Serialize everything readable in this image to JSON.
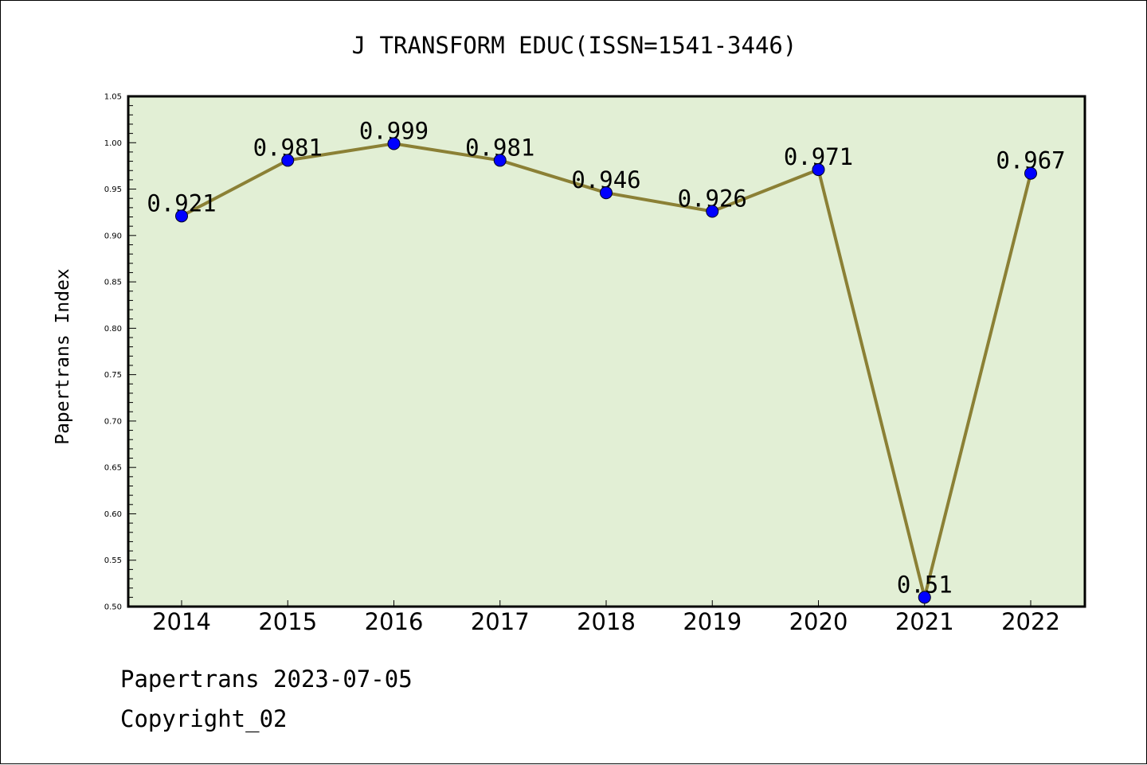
{
  "chart_data": {
    "type": "line",
    "title": "J TRANSFORM EDUC(ISSN=1541-3446)",
    "ylabel": "Papertrans Index",
    "xlabel": "",
    "categories": [
      "2014",
      "2015",
      "2016",
      "2017",
      "2018",
      "2019",
      "2020",
      "2021",
      "2022"
    ],
    "values": [
      0.921,
      0.981,
      0.999,
      0.981,
      0.946,
      0.926,
      0.971,
      0.51,
      0.967
    ],
    "data_labels": [
      "0.921",
      "0.981",
      "0.999",
      "0.981",
      "0.946",
      "0.926",
      "0.971",
      "0.51",
      "0.967"
    ],
    "ylim": [
      0.5,
      1.05
    ],
    "yticks": [
      "0.50",
      "0.55",
      "0.60",
      "0.65",
      "0.70",
      "0.75",
      "0.80",
      "0.85",
      "0.90",
      "0.95",
      "1.00",
      "1.05"
    ],
    "grid": false,
    "colors": {
      "plot_background": "#e2efd5",
      "line": "#8b8035",
      "marker": "#0000ff"
    }
  },
  "footer": {
    "source": "Papertrans 2023-07-05",
    "copyright": "Copyright_02"
  }
}
